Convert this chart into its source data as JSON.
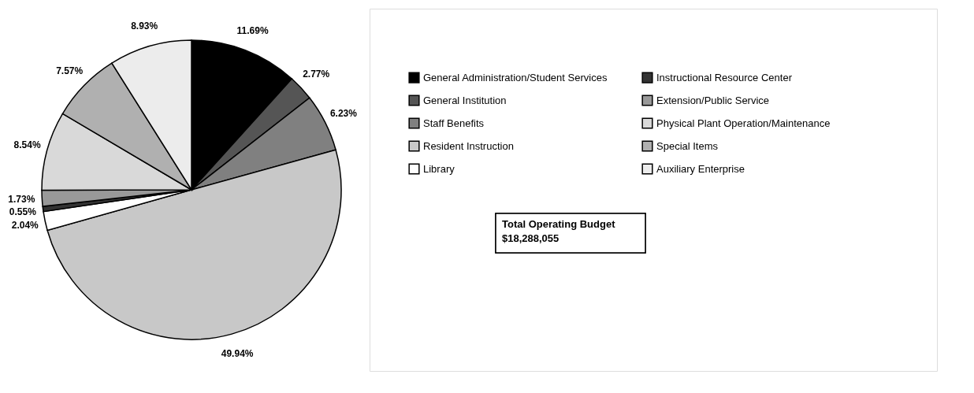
{
  "chart_data": {
    "type": "pie",
    "categories": [
      "General Administration/Student Services",
      "General Institution",
      "Staff Benefits",
      "Resident Instruction",
      "Library",
      "Instructional Resource Center",
      "Extension/Public Service",
      "Physical Plant Operation/Maintenance",
      "Special Items",
      "Auxiliary Enterprise"
    ],
    "values": [
      11.69,
      2.77,
      6.23,
      49.94,
      2.04,
      0.55,
      1.73,
      8.54,
      7.57,
      8.93
    ],
    "value_labels": [
      "11.69%",
      "2.77%",
      "6.23%",
      "49.94%",
      "2.04%",
      "0.55%",
      "1.73%",
      "8.54%",
      "7.57%",
      "8.93%"
    ],
    "colors": [
      "#000000",
      "#555555",
      "#808080",
      "#c8c8c8",
      "#ffffff",
      "#333333",
      "#999999",
      "#d9d9d9",
      "#b0b0b0",
      "#ececec"
    ],
    "legend": "right",
    "annotations": [
      "Total Operating Budget",
      "$18,288,055"
    ]
  }
}
